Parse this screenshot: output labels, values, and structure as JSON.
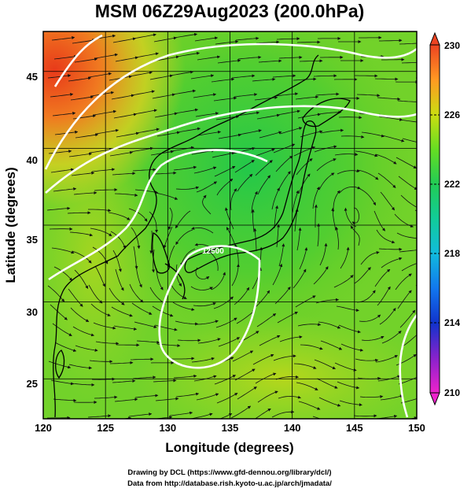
{
  "title": "MSM 06Z29Aug2023 (200.0hPa)",
  "xlabel": "Longitude (degrees)",
  "ylabel": "Latitude  (degrees)",
  "x_ticks": [
    "120",
    "125",
    "130",
    "135",
    "140",
    "145",
    "150"
  ],
  "y_ticks": [
    "25",
    "30",
    "35",
    "40",
    "45"
  ],
  "colorbar": {
    "ticks": [
      "230",
      "226",
      "222",
      "218",
      "214",
      "210"
    ],
    "min": 210,
    "max": 230
  },
  "contour_label": "12500",
  "credits": {
    "line1": "Drawing by DCL (https://www.gfd-dennou.org/library/dcl/)",
    "line2": "Data from http://database.rish.kyoto-u.ac.jp/arch/jmadata/"
  },
  "map_data": {
    "type": "streamline-temperature-map",
    "lon_range": [
      120,
      150
    ],
    "lat_range": [
      22.4,
      47.6
    ],
    "field": "temperature (K)",
    "color_scale": "rainbow",
    "notable_features": [
      "warm region near 45N 120E",
      "anticyclonic gyre near 32N 134E",
      "cyclonic eddy near 39N 144E"
    ]
  }
}
